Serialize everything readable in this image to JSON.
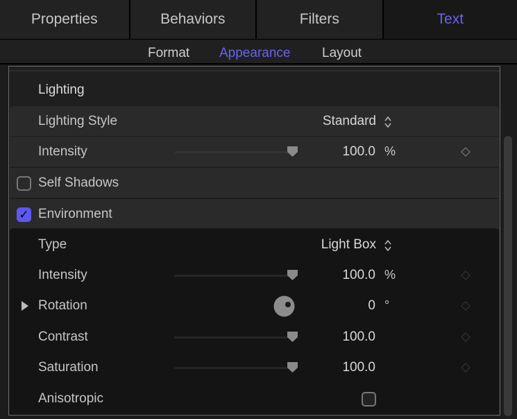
{
  "tabs": [
    {
      "label": "Properties"
    },
    {
      "label": "Behaviors"
    },
    {
      "label": "Filters"
    },
    {
      "label": "Text",
      "active": true
    }
  ],
  "subtabs": [
    {
      "label": "Format"
    },
    {
      "label": "Appearance",
      "active": true
    },
    {
      "label": "Layout"
    }
  ],
  "accent": "#6b63f0",
  "section": "Lighting",
  "lighting_style": {
    "label": "Lighting Style",
    "value": "Standard"
  },
  "intensity": {
    "label": "Intensity",
    "value": "100.0",
    "unit": "%"
  },
  "self_shadows": {
    "label": "Self Shadows",
    "checked": false
  },
  "environment": {
    "label": "Environment",
    "checked": true
  },
  "env_type": {
    "label": "Type",
    "value": "Light Box"
  },
  "env_intensity": {
    "label": "Intensity",
    "value": "100.0",
    "unit": "%"
  },
  "rotation": {
    "label": "Rotation",
    "value": "0",
    "unit": "°"
  },
  "contrast": {
    "label": "Contrast",
    "value": "100.0"
  },
  "saturation": {
    "label": "Saturation",
    "value": "100.0"
  },
  "anisotropic": {
    "label": "Anisotropic",
    "checked": false
  }
}
